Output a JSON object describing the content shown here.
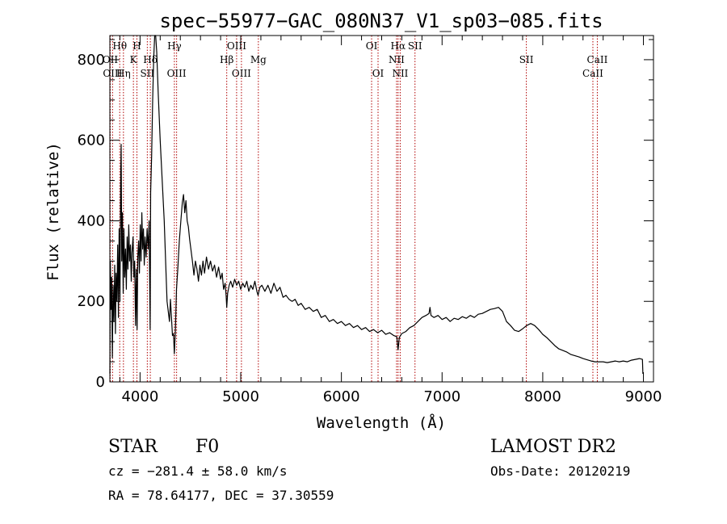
{
  "chart_data": {
    "type": "line",
    "title": "spec−55977−GAC_080N37_V1_sp03−085.fits",
    "xlabel": "Wavelength (Å)",
    "ylabel": "Flux (relative)",
    "xlim": [
      3700,
      9100
    ],
    "ylim": [
      0,
      860
    ],
    "x_ticks": [
      4000,
      5000,
      6000,
      7000,
      8000,
      9000
    ],
    "y_ticks": [
      0,
      200,
      400,
      600,
      800
    ],
    "grid": false,
    "series": [
      {
        "color": "#000000",
        "points": [
          [
            3700,
            20
          ],
          [
            3705,
            300
          ],
          [
            3712,
            180
          ],
          [
            3718,
            260
          ],
          [
            3725,
            60
          ],
          [
            3732,
            240
          ],
          [
            3740,
            150
          ],
          [
            3748,
            290
          ],
          [
            3755,
            120
          ],
          [
            3762,
            270
          ],
          [
            3770,
            200
          ],
          [
            3778,
            340
          ],
          [
            3785,
            160
          ],
          [
            3792,
            380
          ],
          [
            3800,
            200
          ],
          [
            3808,
            520
          ],
          [
            3812,
            590
          ],
          [
            3818,
            300
          ],
          [
            3825,
            420
          ],
          [
            3832,
            220
          ],
          [
            3840,
            380
          ],
          [
            3848,
            260
          ],
          [
            3856,
            330
          ],
          [
            3864,
            230
          ],
          [
            3872,
            360
          ],
          [
            3880,
            280
          ],
          [
            3888,
            390
          ],
          [
            3896,
            300
          ],
          [
            3905,
            340
          ],
          [
            3913,
            250
          ],
          [
            3920,
            320
          ],
          [
            3930,
            360
          ],
          [
            3938,
            260
          ],
          [
            3946,
            300
          ],
          [
            3955,
            140
          ],
          [
            3962,
            280
          ],
          [
            3970,
            130
          ],
          [
            3978,
            310
          ],
          [
            3986,
            350
          ],
          [
            3994,
            270
          ],
          [
            4002,
            390
          ],
          [
            4010,
            300
          ],
          [
            4018,
            420
          ],
          [
            4026,
            330
          ],
          [
            4034,
            380
          ],
          [
            4042,
            290
          ],
          [
            4050,
            360
          ],
          [
            4060,
            310
          ],
          [
            4070,
            380
          ],
          [
            4080,
            330
          ],
          [
            4090,
            400
          ],
          [
            4100,
            130
          ],
          [
            4105,
            470
          ],
          [
            4115,
            560
          ],
          [
            4125,
            700
          ],
          [
            4135,
            800
          ],
          [
            4145,
            860
          ],
          [
            4155,
            860
          ],
          [
            4165,
            820
          ],
          [
            4180,
            720
          ],
          [
            4200,
            600
          ],
          [
            4220,
            500
          ],
          [
            4240,
            400
          ],
          [
            4255,
            290
          ],
          [
            4268,
            200
          ],
          [
            4280,
            175
          ],
          [
            4292,
            150
          ],
          [
            4302,
            205
          ],
          [
            4312,
            160
          ],
          [
            4322,
            115
          ],
          [
            4332,
            120
          ],
          [
            4340,
            70
          ],
          [
            4350,
            120
          ],
          [
            4362,
            230
          ],
          [
            4375,
            280
          ],
          [
            4390,
            350
          ],
          [
            4405,
            400
          ],
          [
            4420,
            445
          ],
          [
            4432,
            465
          ],
          [
            4444,
            420
          ],
          [
            4456,
            450
          ],
          [
            4468,
            400
          ],
          [
            4480,
            385
          ],
          [
            4492,
            355
          ],
          [
            4505,
            330
          ],
          [
            4520,
            300
          ],
          [
            4535,
            265
          ],
          [
            4550,
            300
          ],
          [
            4565,
            280
          ],
          [
            4580,
            250
          ],
          [
            4595,
            290
          ],
          [
            4610,
            265
          ],
          [
            4625,
            300
          ],
          [
            4640,
            270
          ],
          [
            4660,
            310
          ],
          [
            4680,
            280
          ],
          [
            4700,
            300
          ],
          [
            4720,
            275
          ],
          [
            4740,
            290
          ],
          [
            4760,
            260
          ],
          [
            4780,
            285
          ],
          [
            4800,
            255
          ],
          [
            4815,
            270
          ],
          [
            4830,
            230
          ],
          [
            4845,
            245
          ],
          [
            4855,
            215
          ],
          [
            4861,
            185
          ],
          [
            4870,
            220
          ],
          [
            4885,
            240
          ],
          [
            4900,
            250
          ],
          [
            4920,
            235
          ],
          [
            4940,
            255
          ],
          [
            4960,
            240
          ],
          [
            4980,
            250
          ],
          [
            5000,
            230
          ],
          [
            5020,
            245
          ],
          [
            5040,
            235
          ],
          [
            5060,
            250
          ],
          [
            5080,
            225
          ],
          [
            5100,
            240
          ],
          [
            5120,
            230
          ],
          [
            5140,
            250
          ],
          [
            5160,
            225
          ],
          [
            5172,
            215
          ],
          [
            5190,
            235
          ],
          [
            5210,
            240
          ],
          [
            5240,
            225
          ],
          [
            5270,
            240
          ],
          [
            5300,
            220
          ],
          [
            5330,
            245
          ],
          [
            5360,
            225
          ],
          [
            5390,
            235
          ],
          [
            5420,
            210
          ],
          [
            5450,
            215
          ],
          [
            5480,
            205
          ],
          [
            5510,
            200
          ],
          [
            5540,
            205
          ],
          [
            5570,
            190
          ],
          [
            5600,
            195
          ],
          [
            5640,
            180
          ],
          [
            5680,
            185
          ],
          [
            5720,
            175
          ],
          [
            5760,
            180
          ],
          [
            5800,
            160
          ],
          [
            5840,
            165
          ],
          [
            5880,
            150
          ],
          [
            5920,
            155
          ],
          [
            5960,
            145
          ],
          [
            6000,
            150
          ],
          [
            6040,
            140
          ],
          [
            6080,
            145
          ],
          [
            6120,
            135
          ],
          [
            6160,
            140
          ],
          [
            6200,
            130
          ],
          [
            6240,
            135
          ],
          [
            6280,
            125
          ],
          [
            6320,
            130
          ],
          [
            6360,
            122
          ],
          [
            6400,
            128
          ],
          [
            6440,
            118
          ],
          [
            6480,
            122
          ],
          [
            6520,
            115
          ],
          [
            6550,
            112
          ],
          [
            6563,
            80
          ],
          [
            6575,
            110
          ],
          [
            6600,
            120
          ],
          [
            6640,
            125
          ],
          [
            6680,
            135
          ],
          [
            6720,
            140
          ],
          [
            6760,
            150
          ],
          [
            6800,
            160
          ],
          [
            6840,
            165
          ],
          [
            6870,
            170
          ],
          [
            6880,
            185
          ],
          [
            6890,
            165
          ],
          [
            6920,
            160
          ],
          [
            6960,
            165
          ],
          [
            7000,
            155
          ],
          [
            7040,
            160
          ],
          [
            7080,
            150
          ],
          [
            7120,
            158
          ],
          [
            7160,
            155
          ],
          [
            7200,
            162
          ],
          [
            7240,
            158
          ],
          [
            7280,
            165
          ],
          [
            7320,
            160
          ],
          [
            7360,
            168
          ],
          [
            7400,
            170
          ],
          [
            7440,
            175
          ],
          [
            7480,
            180
          ],
          [
            7520,
            182
          ],
          [
            7560,
            185
          ],
          [
            7600,
            175
          ],
          [
            7640,
            150
          ],
          [
            7680,
            140
          ],
          [
            7720,
            128
          ],
          [
            7760,
            125
          ],
          [
            7800,
            132
          ],
          [
            7840,
            140
          ],
          [
            7880,
            145
          ],
          [
            7920,
            140
          ],
          [
            7960,
            130
          ],
          [
            8000,
            118
          ],
          [
            8040,
            110
          ],
          [
            8080,
            100
          ],
          [
            8120,
            90
          ],
          [
            8160,
            82
          ],
          [
            8200,
            78
          ],
          [
            8240,
            74
          ],
          [
            8280,
            68
          ],
          [
            8320,
            65
          ],
          [
            8360,
            62
          ],
          [
            8400,
            58
          ],
          [
            8440,
            55
          ],
          [
            8480,
            52
          ],
          [
            8520,
            50
          ],
          [
            8560,
            50
          ],
          [
            8600,
            50
          ],
          [
            8640,
            48
          ],
          [
            8680,
            50
          ],
          [
            8720,
            52
          ],
          [
            8760,
            50
          ],
          [
            8800,
            52
          ],
          [
            8840,
            50
          ],
          [
            8880,
            54
          ],
          [
            8920,
            56
          ],
          [
            8960,
            58
          ],
          [
            8990,
            56
          ],
          [
            8995,
            20
          ]
        ]
      }
    ],
    "line_marker_color": "#b00000",
    "lines": [
      {
        "x": 3704,
        "label": "OII",
        "row": 1
      },
      {
        "x": 3727,
        "label": "OIII",
        "row": 2
      },
      {
        "x": 3798,
        "label": "Hθ",
        "row": 0
      },
      {
        "x": 3835,
        "label": "Hη",
        "row": 2
      },
      {
        "x": 3934,
        "label": "K",
        "row": 1
      },
      {
        "x": 3969,
        "label": "H",
        "row": 0
      },
      {
        "x": 4072,
        "label": "SII",
        "row": 2
      },
      {
        "x": 4102,
        "label": "Hδ",
        "row": 1
      },
      {
        "x": 4341,
        "label": "Hγ",
        "row": 0
      },
      {
        "x": 4363,
        "label": "OIII",
        "row": 2
      },
      {
        "x": 4861,
        "label": "Hβ",
        "row": 1
      },
      {
        "x": 4959,
        "label": "OIII",
        "row": 0
      },
      {
        "x": 5007,
        "label": "OIII",
        "row": 2
      },
      {
        "x": 5175,
        "label": "Mg",
        "row": 1
      },
      {
        "x": 6300,
        "label": "OI",
        "row": 0
      },
      {
        "x": 6364,
        "label": "OI",
        "row": 2
      },
      {
        "x": 6548,
        "label": "NII",
        "row": 1
      },
      {
        "x": 6563,
        "label": "Hα",
        "row": 0
      },
      {
        "x": 6584,
        "label": "NII",
        "row": 2
      },
      {
        "x": 6731,
        "label": "SII",
        "row": 0
      },
      {
        "x": 7837,
        "label": "SII",
        "row": 1
      },
      {
        "x": 8498,
        "label": "CaII",
        "row": 2
      },
      {
        "x": 8542,
        "label": "CaII",
        "row": 1
      }
    ]
  },
  "info": {
    "object_class": "STAR",
    "subclass": "F0",
    "survey": "LAMOST DR2",
    "velocity": "cz = −281.4 ± 58.0 km/s",
    "obs_date": "Obs-Date: 20120219",
    "coordinates": "RA =  78.64177, DEC =  37.30559"
  }
}
